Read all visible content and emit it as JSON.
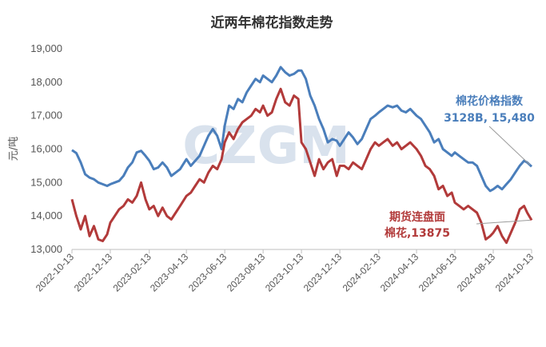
{
  "chart_data": {
    "type": "line",
    "title": "近两年棉花指数走势",
    "ylabel": "元/吨",
    "xlabel": "",
    "ylim": [
      13000,
      19000
    ],
    "y_ticks": [
      "13,000",
      "14,000",
      "15,000",
      "16,000",
      "17,000",
      "18,000",
      "19,000"
    ],
    "y_tick_values": [
      13000,
      14000,
      15000,
      16000,
      17000,
      18000,
      19000
    ],
    "x_tick_labels": [
      "2022-10-13",
      "2022-12-13",
      "2023-02-13",
      "2023-04-13",
      "2023-06-13",
      "2023-08-13",
      "2023-10-13",
      "2023-12-13",
      "2024-02-13",
      "2024-04-13",
      "2024-06-13",
      "2024-08-13",
      "2024-10-13"
    ],
    "x_tick_dates": [
      "2022-10-13",
      "2022-12-13",
      "2023-02-13",
      "2023-04-13",
      "2023-06-13",
      "2023-08-13",
      "2023-10-13",
      "2023-12-13",
      "2024-02-13",
      "2024-04-13",
      "2024-06-13",
      "2024-08-13",
      "2024-10-13"
    ],
    "grid": false,
    "watermark": "CZGM",
    "series": [
      {
        "name": "棉花价格指数",
        "color": "#4a7ebb",
        "annotation_lines": [
          "棉花价格指数",
          "3128B, 15,480"
        ],
        "points": [
          [
            "2022-10-13",
            15970
          ],
          [
            "2022-10-20",
            15880
          ],
          [
            "2022-10-27",
            15600
          ],
          [
            "2022-11-03",
            15250
          ],
          [
            "2022-11-10",
            15150
          ],
          [
            "2022-11-17",
            15100
          ],
          [
            "2022-11-24",
            15000
          ],
          [
            "2022-12-01",
            14950
          ],
          [
            "2022-12-08",
            14900
          ],
          [
            "2022-12-13",
            14950
          ],
          [
            "2022-12-20",
            15000
          ],
          [
            "2022-12-27",
            15050
          ],
          [
            "2023-01-03",
            15200
          ],
          [
            "2023-01-10",
            15450
          ],
          [
            "2023-01-17",
            15600
          ],
          [
            "2023-01-24",
            15900
          ],
          [
            "2023-01-31",
            15950
          ],
          [
            "2023-02-07",
            15800
          ],
          [
            "2023-02-13",
            15650
          ],
          [
            "2023-02-20",
            15400
          ],
          [
            "2023-02-27",
            15450
          ],
          [
            "2023-03-06",
            15600
          ],
          [
            "2023-03-13",
            15450
          ],
          [
            "2023-03-20",
            15200
          ],
          [
            "2023-03-27",
            15300
          ],
          [
            "2023-04-03",
            15400
          ],
          [
            "2023-04-13",
            15700
          ],
          [
            "2023-04-20",
            15500
          ],
          [
            "2023-04-27",
            15650
          ],
          [
            "2023-05-04",
            15800
          ],
          [
            "2023-05-11",
            16100
          ],
          [
            "2023-05-18",
            16400
          ],
          [
            "2023-05-25",
            16600
          ],
          [
            "2023-06-01",
            16400
          ],
          [
            "2023-06-08",
            16000
          ],
          [
            "2023-06-13",
            16700
          ],
          [
            "2023-06-20",
            17300
          ],
          [
            "2023-06-27",
            17200
          ],
          [
            "2023-07-04",
            17500
          ],
          [
            "2023-07-11",
            17400
          ],
          [
            "2023-07-18",
            17700
          ],
          [
            "2023-07-25",
            17900
          ],
          [
            "2023-08-01",
            18100
          ],
          [
            "2023-08-08",
            18000
          ],
          [
            "2023-08-13",
            18200
          ],
          [
            "2023-08-20",
            18100
          ],
          [
            "2023-08-27",
            18000
          ],
          [
            "2023-09-03",
            18200
          ],
          [
            "2023-09-10",
            18450
          ],
          [
            "2023-09-17",
            18300
          ],
          [
            "2023-09-24",
            18200
          ],
          [
            "2023-10-01",
            18250
          ],
          [
            "2023-10-08",
            18350
          ],
          [
            "2023-10-13",
            18350
          ],
          [
            "2023-10-20",
            18100
          ],
          [
            "2023-10-27",
            17600
          ],
          [
            "2023-11-03",
            17300
          ],
          [
            "2023-11-10",
            16900
          ],
          [
            "2023-11-17",
            16600
          ],
          [
            "2023-11-24",
            16200
          ],
          [
            "2023-12-01",
            16300
          ],
          [
            "2023-12-08",
            16250
          ],
          [
            "2023-12-13",
            16100
          ],
          [
            "2023-12-20",
            16300
          ],
          [
            "2023-12-27",
            16500
          ],
          [
            "2024-01-03",
            16350
          ],
          [
            "2024-01-10",
            16150
          ],
          [
            "2024-01-17",
            16300
          ],
          [
            "2024-01-24",
            16600
          ],
          [
            "2024-01-31",
            16900
          ],
          [
            "2024-02-07",
            17000
          ],
          [
            "2024-02-13",
            17100
          ],
          [
            "2024-02-20",
            17200
          ],
          [
            "2024-02-27",
            17300
          ],
          [
            "2024-03-06",
            17250
          ],
          [
            "2024-03-13",
            17300
          ],
          [
            "2024-03-20",
            17150
          ],
          [
            "2024-03-27",
            17100
          ],
          [
            "2024-04-03",
            17200
          ],
          [
            "2024-04-13",
            17000
          ],
          [
            "2024-04-20",
            16900
          ],
          [
            "2024-04-27",
            16700
          ],
          [
            "2024-05-04",
            16500
          ],
          [
            "2024-05-11",
            16200
          ],
          [
            "2024-05-18",
            16300
          ],
          [
            "2024-05-25",
            16000
          ],
          [
            "2024-06-01",
            15900
          ],
          [
            "2024-06-08",
            15800
          ],
          [
            "2024-06-13",
            15900
          ],
          [
            "2024-06-20",
            15800
          ],
          [
            "2024-06-27",
            15700
          ],
          [
            "2024-07-04",
            15600
          ],
          [
            "2024-07-11",
            15600
          ],
          [
            "2024-07-18",
            15500
          ],
          [
            "2024-07-25",
            15200
          ],
          [
            "2024-08-01",
            14900
          ],
          [
            "2024-08-08",
            14750
          ],
          [
            "2024-08-13",
            14800
          ],
          [
            "2024-08-20",
            14900
          ],
          [
            "2024-08-27",
            14800
          ],
          [
            "2024-09-03",
            14950
          ],
          [
            "2024-09-10",
            15100
          ],
          [
            "2024-09-17",
            15300
          ],
          [
            "2024-09-24",
            15500
          ],
          [
            "2024-10-01",
            15650
          ],
          [
            "2024-10-06",
            15600
          ],
          [
            "2024-10-13",
            15480
          ]
        ]
      },
      {
        "name": "期货连盘面棉花",
        "color": "#b23a3a",
        "annotation_lines": [
          "期货连盘面",
          "棉花,13875"
        ],
        "points": [
          [
            "2022-10-13",
            14500
          ],
          [
            "2022-10-20",
            14000
          ],
          [
            "2022-10-27",
            13600
          ],
          [
            "2022-11-03",
            14000
          ],
          [
            "2022-11-10",
            13400
          ],
          [
            "2022-11-17",
            13700
          ],
          [
            "2022-11-24",
            13300
          ],
          [
            "2022-12-01",
            13250
          ],
          [
            "2022-12-08",
            13450
          ],
          [
            "2022-12-13",
            13800
          ],
          [
            "2022-12-20",
            14000
          ],
          [
            "2022-12-27",
            14200
          ],
          [
            "2023-01-03",
            14300
          ],
          [
            "2023-01-10",
            14500
          ],
          [
            "2023-01-17",
            14400
          ],
          [
            "2023-01-24",
            14600
          ],
          [
            "2023-01-31",
            15000
          ],
          [
            "2023-02-07",
            14500
          ],
          [
            "2023-02-13",
            14200
          ],
          [
            "2023-02-20",
            14300
          ],
          [
            "2023-02-27",
            14000
          ],
          [
            "2023-03-06",
            14250
          ],
          [
            "2023-03-13",
            14000
          ],
          [
            "2023-03-20",
            13900
          ],
          [
            "2023-03-27",
            14100
          ],
          [
            "2023-04-03",
            14300
          ],
          [
            "2023-04-13",
            14600
          ],
          [
            "2023-04-20",
            14700
          ],
          [
            "2023-04-27",
            14900
          ],
          [
            "2023-05-04",
            15100
          ],
          [
            "2023-05-11",
            15000
          ],
          [
            "2023-05-18",
            15300
          ],
          [
            "2023-05-25",
            15500
          ],
          [
            "2023-06-01",
            15400
          ],
          [
            "2023-06-08",
            15700
          ],
          [
            "2023-06-13",
            16200
          ],
          [
            "2023-06-20",
            16500
          ],
          [
            "2023-06-27",
            16300
          ],
          [
            "2023-07-04",
            16600
          ],
          [
            "2023-07-11",
            16800
          ],
          [
            "2023-07-18",
            16900
          ],
          [
            "2023-07-25",
            17000
          ],
          [
            "2023-08-01",
            17200
          ],
          [
            "2023-08-08",
            17100
          ],
          [
            "2023-08-13",
            17300
          ],
          [
            "2023-08-20",
            17000
          ],
          [
            "2023-08-27",
            17100
          ],
          [
            "2023-09-03",
            17500
          ],
          [
            "2023-09-10",
            17800
          ],
          [
            "2023-09-17",
            17400
          ],
          [
            "2023-09-24",
            17300
          ],
          [
            "2023-10-01",
            17600
          ],
          [
            "2023-10-08",
            17500
          ],
          [
            "2023-10-13",
            16200
          ],
          [
            "2023-10-20",
            16000
          ],
          [
            "2023-10-27",
            15600
          ],
          [
            "2023-11-03",
            15200
          ],
          [
            "2023-11-10",
            15700
          ],
          [
            "2023-11-17",
            15400
          ],
          [
            "2023-11-24",
            15600
          ],
          [
            "2023-12-01",
            15700
          ],
          [
            "2023-12-08",
            15200
          ],
          [
            "2023-12-13",
            15500
          ],
          [
            "2023-12-20",
            15500
          ],
          [
            "2023-12-27",
            15400
          ],
          [
            "2024-01-03",
            15600
          ],
          [
            "2024-01-10",
            15500
          ],
          [
            "2024-01-17",
            15400
          ],
          [
            "2024-01-24",
            15700
          ],
          [
            "2024-01-31",
            16000
          ],
          [
            "2024-02-07",
            16200
          ],
          [
            "2024-02-13",
            16100
          ],
          [
            "2024-02-20",
            16200
          ],
          [
            "2024-02-27",
            16300
          ],
          [
            "2024-03-06",
            16100
          ],
          [
            "2024-03-13",
            16200
          ],
          [
            "2024-03-20",
            16000
          ],
          [
            "2024-03-27",
            16100
          ],
          [
            "2024-04-03",
            16200
          ],
          [
            "2024-04-13",
            16000
          ],
          [
            "2024-04-20",
            15800
          ],
          [
            "2024-04-27",
            15500
          ],
          [
            "2024-05-04",
            15400
          ],
          [
            "2024-05-11",
            15200
          ],
          [
            "2024-05-18",
            14800
          ],
          [
            "2024-05-25",
            14900
          ],
          [
            "2024-06-01",
            14600
          ],
          [
            "2024-06-08",
            14700
          ],
          [
            "2024-06-13",
            14400
          ],
          [
            "2024-06-20",
            14300
          ],
          [
            "2024-06-27",
            14200
          ],
          [
            "2024-07-04",
            14300
          ],
          [
            "2024-07-11",
            14200
          ],
          [
            "2024-07-18",
            14100
          ],
          [
            "2024-07-25",
            13800
          ],
          [
            "2024-08-01",
            13300
          ],
          [
            "2024-08-08",
            13400
          ],
          [
            "2024-08-13",
            13500
          ],
          [
            "2024-08-20",
            13700
          ],
          [
            "2024-08-27",
            13400
          ],
          [
            "2024-09-03",
            13200
          ],
          [
            "2024-09-10",
            13500
          ],
          [
            "2024-09-17",
            13800
          ],
          [
            "2024-09-24",
            14200
          ],
          [
            "2024-10-01",
            14300
          ],
          [
            "2024-10-06",
            14100
          ],
          [
            "2024-10-13",
            13875
          ]
        ]
      }
    ]
  }
}
